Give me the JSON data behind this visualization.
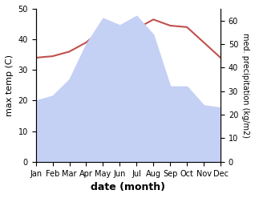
{
  "months": [
    "Jan",
    "Feb",
    "Mar",
    "Apr",
    "May",
    "Jun",
    "Jul",
    "Aug",
    "Sep",
    "Oct",
    "Nov",
    "Dec"
  ],
  "month_indices": [
    0,
    1,
    2,
    3,
    4,
    5,
    6,
    7,
    8,
    9,
    10,
    11
  ],
  "temperature": [
    34,
    34.5,
    36,
    39,
    43.5,
    44,
    43.5,
    46.5,
    44.5,
    44,
    39,
    34
  ],
  "precipitation": [
    26,
    28,
    35,
    50,
    61,
    58,
    62,
    54,
    32,
    32,
    24,
    23
  ],
  "temp_color": "#c0504d",
  "precip_fill_color": "#c5d0f5",
  "temp_ylim": [
    0,
    50
  ],
  "precip_ylim": [
    0,
    65
  ],
  "temp_yticks": [
    0,
    10,
    20,
    30,
    40,
    50
  ],
  "precip_yticks": [
    0,
    10,
    20,
    30,
    40,
    50,
    60
  ],
  "xlabel": "date (month)",
  "ylabel_left": "max temp (C)",
  "ylabel_right": "med. precipitation (kg/m2)",
  "bg_color": "#ffffff"
}
